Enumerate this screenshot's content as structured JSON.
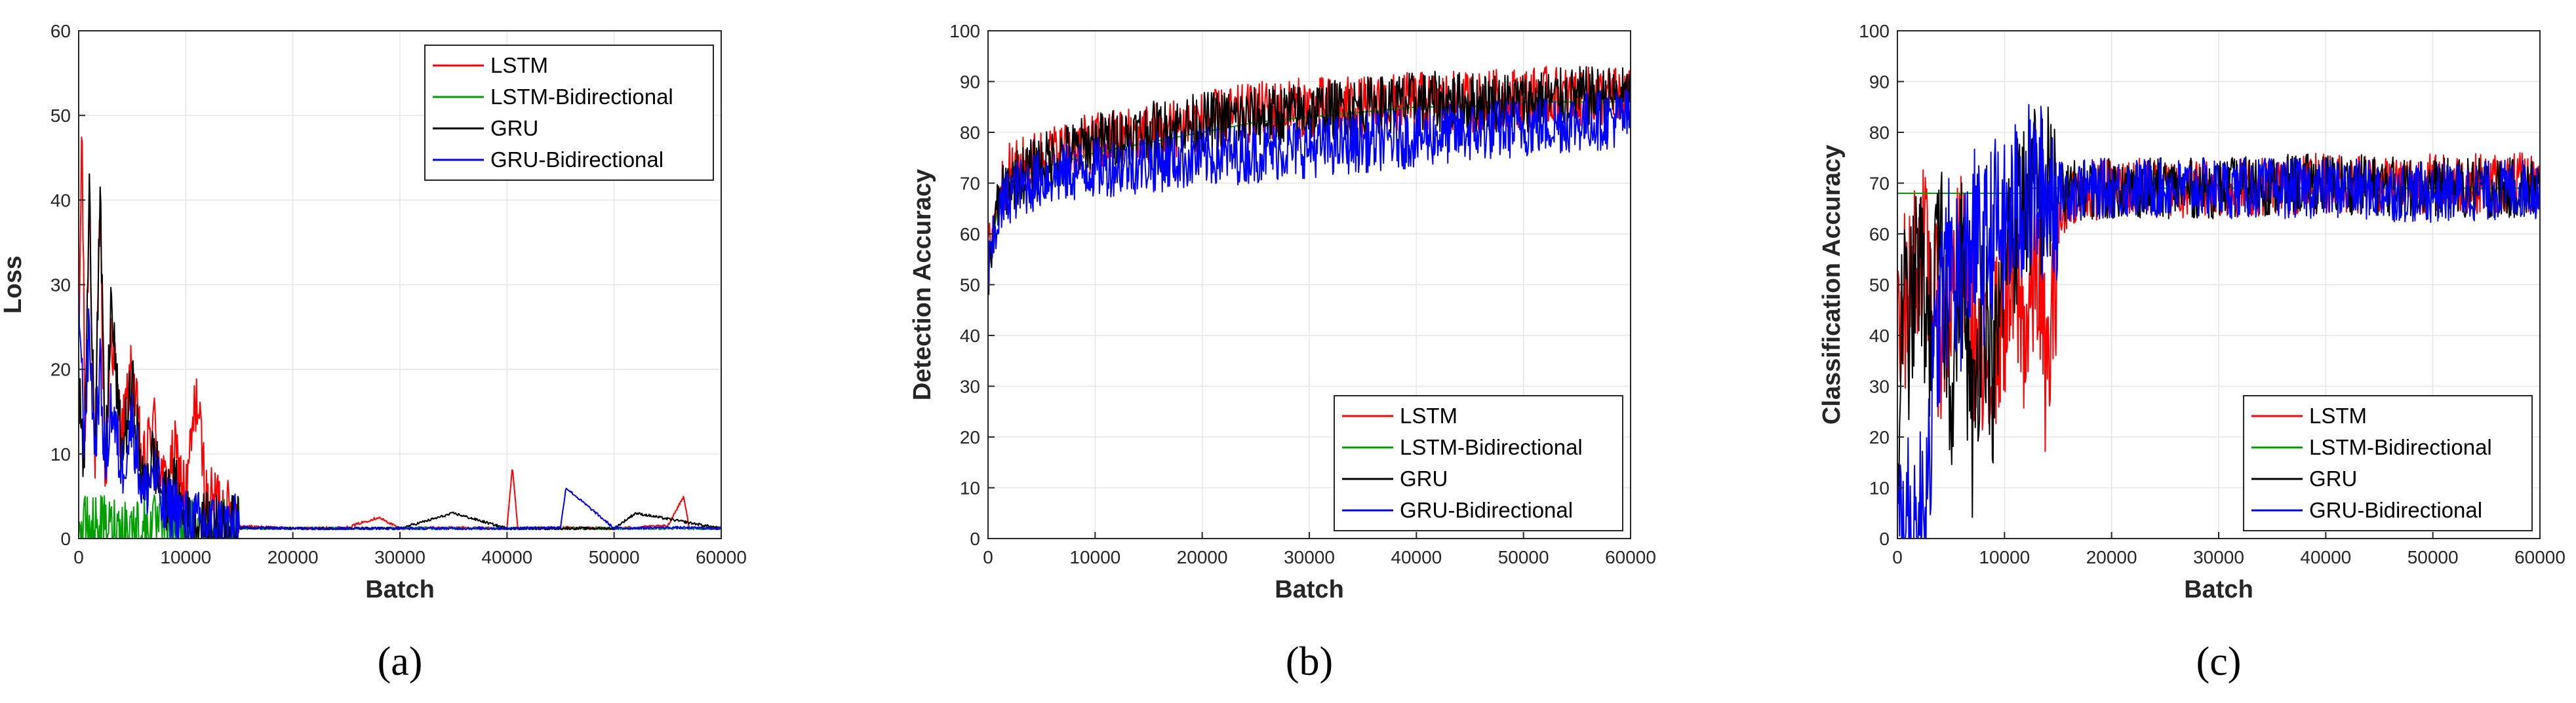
{
  "colors": {
    "LSTM": "#ff0000",
    "LSTM-Bidirectional": "#00a000",
    "GRU": "#000000",
    "GRU-Bidirectional": "#0000ff"
  },
  "chart_data": [
    {
      "type": "line",
      "panel": "(a)",
      "title": "",
      "xlabel": "Batch",
      "ylabel": "Loss",
      "xlim": [
        0,
        60000
      ],
      "ylim": [
        0,
        60
      ],
      "xticks": [
        0,
        10000,
        20000,
        30000,
        40000,
        50000,
        60000
      ],
      "yticks": [
        0,
        10,
        20,
        30,
        40,
        50,
        60
      ],
      "grid": true,
      "legend_position": "top-right",
      "series": [
        {
          "name": "LSTM",
          "x": [
            0,
            300,
            600,
            1000,
            1500,
            2000,
            2500,
            3000,
            4000,
            5000,
            6000,
            7000,
            8000,
            9000,
            10000,
            11000,
            12000,
            13000,
            14000,
            15000,
            20000,
            25000,
            28000,
            30000,
            35000,
            40000,
            40500,
            41000,
            45000,
            50000,
            55000,
            56500,
            57000,
            60000
          ],
          "y": [
            20,
            50,
            12,
            42,
            8,
            38,
            6,
            25,
            12,
            20,
            8,
            14,
            6,
            10,
            5,
            17,
            4,
            5,
            3,
            1.5,
            1.2,
            1.3,
            2.5,
            1.2,
            1.3,
            1.2,
            8.5,
            1.2,
            1.3,
            1.2,
            1.5,
            5,
            1.3,
            1.2
          ]
        },
        {
          "name": "LSTM-Bidirectional",
          "x": [
            0,
            60000
          ],
          "y": [
            1.2,
            1.2
          ]
        },
        {
          "name": "GRU",
          "x": [
            0,
            500,
            1000,
            1500,
            2000,
            2500,
            3000,
            4000,
            5000,
            6000,
            7000,
            8000,
            9000,
            10000,
            12000,
            15000,
            20000,
            30000,
            35000,
            40000,
            50000,
            52000,
            60000
          ],
          "y": [
            18,
            8,
            40,
            12,
            40,
            8,
            28,
            10,
            18,
            6,
            10,
            4,
            6,
            2,
            1.5,
            1.3,
            1.2,
            1.2,
            3,
            1.2,
            1.2,
            3,
            1.2
          ]
        },
        {
          "name": "GRU-Bidirectional",
          "x": [
            0,
            500,
            1000,
            1500,
            2000,
            2500,
            3000,
            4000,
            5000,
            6000,
            7000,
            8000,
            9000,
            10000,
            12000,
            15000,
            20000,
            30000,
            40000,
            45000,
            45500,
            50000,
            55000,
            60000
          ],
          "y": [
            30,
            12,
            25,
            10,
            20,
            8,
            16,
            8,
            14,
            5,
            8,
            3,
            4,
            2,
            1.5,
            1.3,
            1.2,
            1.2,
            1.2,
            1.3,
            6,
            1.2,
            1.3,
            1.2
          ]
        }
      ]
    },
    {
      "type": "line",
      "panel": "(b)",
      "title": "",
      "xlabel": "Batch",
      "ylabel": "Detection Accuracy",
      "xlim": [
        0,
        60000
      ],
      "ylim": [
        0,
        100
      ],
      "xticks": [
        0,
        10000,
        20000,
        30000,
        40000,
        50000,
        60000
      ],
      "yticks": [
        0,
        10,
        20,
        30,
        40,
        50,
        60,
        70,
        80,
        90,
        100
      ],
      "grid": true,
      "legend_position": "bottom-right",
      "series": [
        {
          "name": "LSTM",
          "x": [
            0,
            500,
            1000,
            2000,
            5000,
            10000,
            15000,
            20000,
            25000,
            30000,
            35000,
            40000,
            45000,
            50000,
            55000,
            60000
          ],
          "y": [
            55,
            62,
            68,
            72,
            75,
            78,
            80,
            82,
            84,
            85,
            85,
            86,
            86,
            87,
            87,
            87
          ]
        },
        {
          "name": "LSTM-Bidirectional",
          "x": [
            0,
            500,
            1000,
            2000,
            5000,
            10000,
            15000,
            20000,
            25000,
            30000,
            35000,
            40000,
            45000,
            50000,
            55000,
            60000
          ],
          "y": [
            55,
            60,
            66,
            70,
            73,
            76,
            78,
            80,
            82,
            83,
            84,
            85,
            85,
            86,
            86,
            86
          ]
        },
        {
          "name": "GRU",
          "x": [
            0,
            500,
            1000,
            2000,
            5000,
            10000,
            15000,
            20000,
            25000,
            30000,
            35000,
            40000,
            45000,
            50000,
            55000,
            60000
          ],
          "y": [
            52,
            60,
            66,
            70,
            74,
            78,
            80,
            82,
            83,
            84,
            85,
            86,
            86,
            86,
            87,
            87
          ]
        },
        {
          "name": "GRU-Bidirectional",
          "x": [
            0,
            500,
            1000,
            2000,
            5000,
            10000,
            15000,
            20000,
            25000,
            30000,
            35000,
            40000,
            45000,
            50000,
            55000,
            60000
          ],
          "y": [
            52,
            58,
            64,
            68,
            71,
            73,
            74,
            75,
            76,
            77,
            78,
            79,
            80,
            81,
            82,
            83
          ]
        }
      ]
    },
    {
      "type": "line",
      "panel": "(c)",
      "title": "",
      "xlabel": "Batch",
      "ylabel": "Classification Accuracy",
      "xlim": [
        0,
        60000
      ],
      "ylim": [
        0,
        100
      ],
      "xticks": [
        0,
        10000,
        20000,
        30000,
        40000,
        50000,
        60000
      ],
      "yticks": [
        0,
        10,
        20,
        30,
        40,
        50,
        60,
        70,
        80,
        90,
        100
      ],
      "grid": true,
      "legend_position": "bottom-right",
      "series": [
        {
          "name": "LSTM",
          "x": [
            0,
            1000,
            2000,
            4000,
            6000,
            8000,
            10000,
            11000,
            12000,
            13000,
            14000,
            15000,
            16000,
            20000,
            30000,
            40000,
            50000,
            60000
          ],
          "y": [
            50,
            45,
            60,
            40,
            55,
            30,
            45,
            50,
            40,
            55,
            30,
            60,
            68,
            69,
            69,
            70,
            70,
            70
          ]
        },
        {
          "name": "LSTM-Bidirectional",
          "x": [
            0,
            12000,
            12500,
            20000,
            40000,
            60000
          ],
          "y": [
            68,
            68,
            69,
            69,
            69,
            69
          ]
        },
        {
          "name": "GRU",
          "x": [
            0,
            500,
            1000,
            2000,
            3000,
            4000,
            5000,
            6000,
            7000,
            8000,
            9000,
            10000,
            11000,
            12000,
            20000,
            30000,
            40000,
            50000,
            60000
          ],
          "y": [
            10,
            50,
            40,
            55,
            40,
            58,
            30,
            55,
            20,
            50,
            30,
            55,
            62,
            68,
            69,
            69,
            70,
            69,
            69
          ]
        },
        {
          "name": "GRU-Bidirectional",
          "x": [
            0,
            500,
            1000,
            2000,
            3000,
            4000,
            5000,
            6000,
            7000,
            8000,
            9000,
            10000,
            11000,
            12000,
            20000,
            30000,
            40000,
            50000,
            60000
          ],
          "y": [
            2,
            1,
            2,
            1,
            20,
            45,
            55,
            50,
            60,
            55,
            62,
            60,
            65,
            68,
            69,
            69,
            69,
            68,
            69
          ]
        }
      ]
    }
  ]
}
